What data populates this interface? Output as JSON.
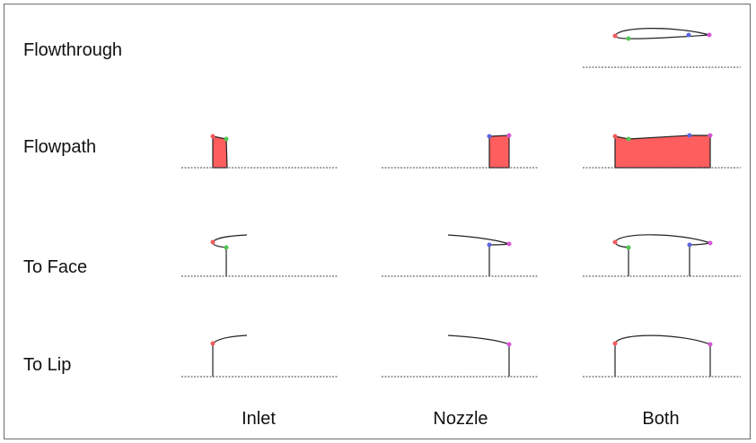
{
  "rows": {
    "flowthrough": "Flowthrough",
    "flowpath": "Flowpath",
    "to_face": "To Face",
    "to_lip": "To Lip"
  },
  "columns": {
    "inlet": "Inlet",
    "nozzle": "Nozzle",
    "both": "Both"
  },
  "legend_colors": {
    "inlet_lip_point": "#f25b5b",
    "inlet_face_point": "#52c552",
    "nozzle_face_point": "#5a66de",
    "nozzle_lip_point": "#d656d6",
    "flowpath_fill": "#fe5e5e"
  }
}
